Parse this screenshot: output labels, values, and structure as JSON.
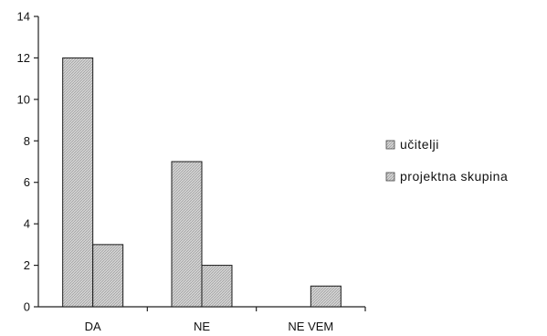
{
  "chart_data": {
    "type": "bar",
    "categories": [
      "DA",
      "NE",
      "NE VEM"
    ],
    "series": [
      {
        "name": "učitelji",
        "values": [
          12,
          7,
          0
        ]
      },
      {
        "name": "projektna skupina",
        "values": [
          3,
          2,
          1
        ]
      }
    ],
    "ylim": [
      0,
      14
    ],
    "yticks": [
      0,
      2,
      4,
      6,
      8,
      10,
      12,
      14
    ],
    "xlabel": "",
    "ylabel": "",
    "title": "",
    "legend_position": "right",
    "grid": false,
    "colors": [
      "#c8c8c8",
      "#cfcfcf"
    ]
  }
}
